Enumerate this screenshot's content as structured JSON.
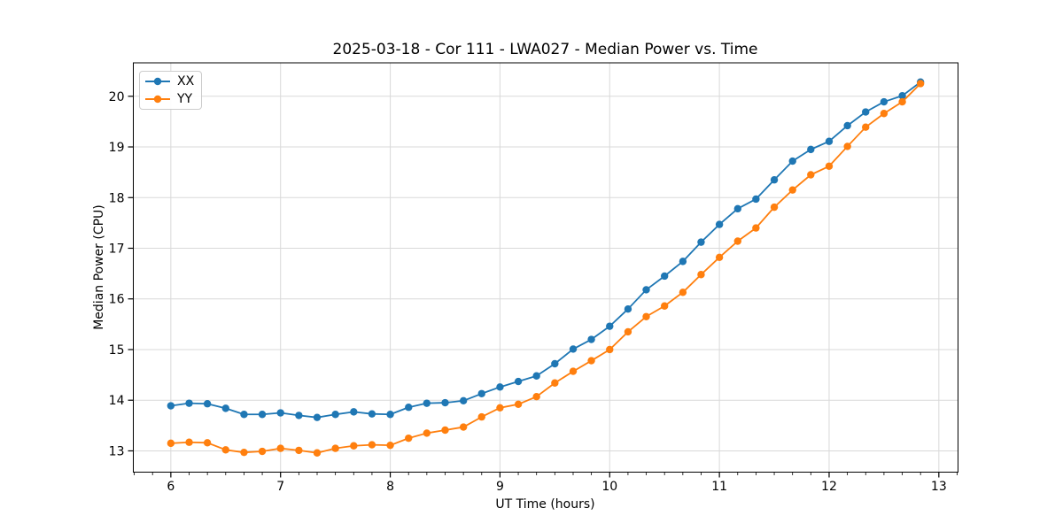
{
  "chart_data": {
    "type": "line",
    "title": "2025-03-18 - Cor 111 - LWA027 - Median Power vs. Time",
    "xlabel": "UT Time (hours)",
    "ylabel": "Median Power (CPU)",
    "xlim": [
      5.658,
      13.175
    ],
    "ylim": [
      12.58,
      20.66
    ],
    "xticks": [
      6,
      7,
      8,
      9,
      10,
      11,
      12,
      13
    ],
    "yticks": [
      13,
      14,
      15,
      16,
      17,
      18,
      19,
      20
    ],
    "x_minor_tick_step": 0.166667,
    "grid": true,
    "grid_color": "#d9d9d9",
    "spine_color": "#000000",
    "legend_position": "upper-left",
    "marker": "circle",
    "x": [
      6.0,
      6.167,
      6.333,
      6.5,
      6.667,
      6.833,
      7.0,
      7.167,
      7.333,
      7.5,
      7.667,
      7.833,
      8.0,
      8.167,
      8.333,
      8.5,
      8.667,
      8.833,
      9.0,
      9.167,
      9.333,
      9.5,
      9.667,
      9.833,
      10.0,
      10.167,
      10.333,
      10.5,
      10.667,
      10.833,
      11.0,
      11.167,
      11.333,
      11.5,
      11.667,
      11.833,
      12.0,
      12.167,
      12.333,
      12.5,
      12.667,
      12.833
    ],
    "series": [
      {
        "name": "XX",
        "color": "#1f77b4",
        "values": [
          13.89,
          13.94,
          13.93,
          13.84,
          13.72,
          13.72,
          13.75,
          13.7,
          13.66,
          13.72,
          13.77,
          13.73,
          13.72,
          13.86,
          13.94,
          13.95,
          13.99,
          14.13,
          14.26,
          14.37,
          14.48,
          14.72,
          15.01,
          15.2,
          15.46,
          15.8,
          16.18,
          16.45,
          16.74,
          17.12,
          17.47,
          17.78,
          17.97,
          18.35,
          18.72,
          18.95,
          19.11,
          19.42,
          19.69,
          19.89,
          20.01,
          20.28
        ]
      },
      {
        "name": "YY",
        "color": "#ff7f0e",
        "values": [
          13.15,
          13.17,
          13.16,
          13.02,
          12.97,
          12.99,
          13.05,
          13.01,
          12.96,
          13.05,
          13.1,
          13.12,
          13.11,
          13.25,
          13.35,
          13.41,
          13.47,
          13.67,
          13.85,
          13.92,
          14.07,
          14.34,
          14.57,
          14.78,
          15.0,
          15.35,
          15.65,
          15.86,
          16.13,
          16.48,
          16.82,
          17.14,
          17.4,
          17.81,
          18.15,
          18.45,
          18.62,
          19.01,
          19.39,
          19.66,
          19.89,
          20.25
        ]
      }
    ]
  }
}
